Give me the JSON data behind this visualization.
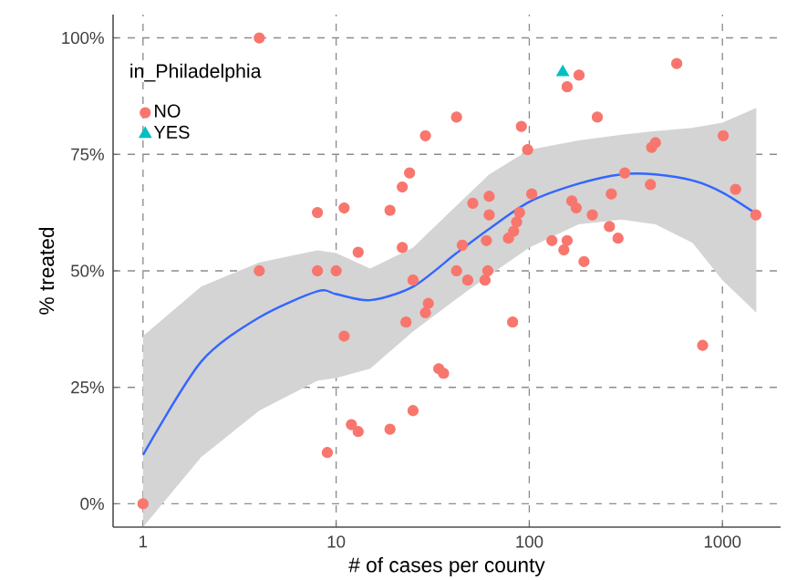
{
  "chart_data": {
    "type": "scatter",
    "xlabel": "# of cases per county",
    "ylabel": "% treated",
    "legend_title": "in_Philadelphia",
    "log": "x",
    "grid": true,
    "legend": "top left",
    "xlim": [
      0.7,
      2000
    ],
    "xticks": [
      1,
      10,
      100,
      1000
    ],
    "ylim": [
      -5,
      105
    ],
    "yticks": [
      {
        "value": 0,
        "label": "0%"
      },
      {
        "value": 25,
        "label": "25%"
      },
      {
        "value": 50,
        "label": "50%"
      },
      {
        "value": 75,
        "label": "75%"
      },
      {
        "value": 100,
        "label": "100%"
      }
    ],
    "series": [
      {
        "name": "NO",
        "marker": "circle",
        "color": "#f8766d",
        "x": [
          4,
          29,
          24,
          22,
          8,
          11,
          19,
          13,
          22,
          4,
          8,
          10,
          25,
          1,
          11,
          23,
          29,
          30,
          25,
          12,
          13,
          19,
          9,
          34,
          36,
          82,
          790,
          192,
          42,
          48,
          59,
          61,
          181,
          157,
          580,
          225,
          91,
          98,
          42,
          430,
          450,
          1010,
          312,
          424,
          1170,
          1490,
          266,
          103,
          62,
          51,
          62,
          166,
          175,
          212,
          89,
          86,
          83,
          78,
          45,
          60,
          260,
          288,
          131,
          157,
          151
        ],
        "values": [
          100,
          79,
          71,
          68,
          62.5,
          63.5,
          63,
          54,
          55,
          50,
          50,
          50,
          48,
          0,
          36,
          39,
          41,
          43,
          20,
          17,
          15.5,
          16,
          11,
          29,
          28,
          39,
          34,
          52,
          50,
          48,
          48,
          50,
          92,
          89.5,
          94.5,
          83,
          81,
          76,
          83,
          76.5,
          77.5,
          79,
          71,
          68.5,
          67.5,
          62,
          66.5,
          66.5,
          66,
          64.5,
          62,
          65,
          63.5,
          62,
          62.5,
          60.5,
          58.5,
          57,
          55.5,
          56.5,
          59.5,
          57,
          56.5,
          56.5,
          54.5
        ]
      },
      {
        "name": "YES",
        "marker": "triangle",
        "color": "#00bfc4",
        "x": [
          149
        ],
        "values": [
          92.6
        ]
      },
      {
        "type": "line",
        "color": "#3366ff",
        "x": [
          1,
          2,
          4,
          8,
          10,
          15,
          25,
          42,
          62,
          100,
          180,
          300,
          450,
          700,
          1000,
          1500
        ],
        "values": [
          10.5,
          30.5,
          40,
          45.6,
          45,
          43.7,
          46.6,
          53.8,
          59,
          64.8,
          68.7,
          70.7,
          70.7,
          69.4,
          66.8,
          62.2
        ],
        "lower": [
          -5,
          10,
          20,
          26.4,
          27,
          29,
          37,
          44,
          49,
          55,
          60,
          61,
          60,
          56,
          48,
          41
        ],
        "upper": [
          36,
          46.6,
          51.8,
          54.4,
          53.8,
          50.5,
          55,
          64,
          70.7,
          76,
          78,
          79.2,
          80,
          80.7,
          81.8,
          85
        ]
      }
    ]
  }
}
